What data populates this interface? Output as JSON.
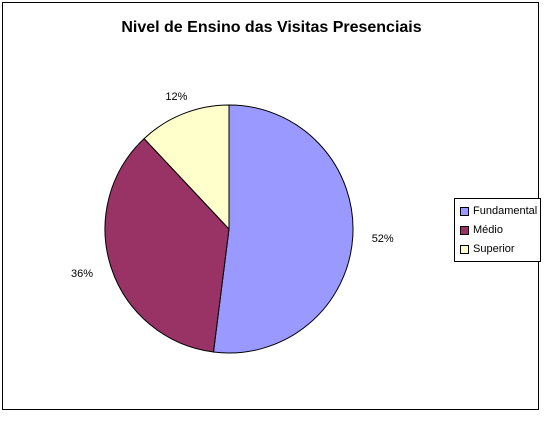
{
  "chart_data": {
    "type": "pie",
    "title": "Nivel de Ensino das Visitas Presenciais",
    "categories": [
      "Fundamental",
      "Médio",
      "Superior"
    ],
    "values": [
      52,
      36,
      12
    ],
    "labels": [
      "52%",
      "36%",
      "12%"
    ],
    "colors": [
      "#9999ff",
      "#993366",
      "#ffffcc"
    ],
    "legend_position": "right"
  }
}
